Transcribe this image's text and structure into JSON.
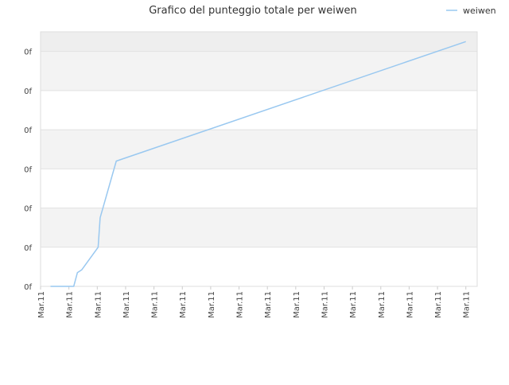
{
  "chart_data": {
    "type": "line",
    "title": "Grafico del punteggio totale per weiwen",
    "legend": {
      "position": "top-right",
      "label": "weiwen"
    },
    "y_tick_labels": [
      "0f",
      "0f",
      "0f",
      "0f",
      "0f",
      "0f",
      "0f"
    ],
    "x_tick_labels": [
      "Mar.11",
      "Mar.11",
      "Mar.11",
      "Mar.11",
      "Mar.11",
      "Mar.11",
      "Mar.11",
      "Mar.11",
      "Mar.11",
      "Mar.11",
      "Mar.11",
      "Mar.11",
      "Mar.11",
      "Mar.11",
      "Mar.11",
      "Mar.11"
    ],
    "ylim": [
      0,
      6.5
    ],
    "xlim": [
      0,
      15.4
    ],
    "grid": true,
    "series": [
      {
        "name": "weiwen",
        "color": "#99c8f0",
        "points": [
          {
            "x": 0.35,
            "y": 0.0
          },
          {
            "x": 1.17,
            "y": 0.0
          },
          {
            "x": 1.3,
            "y": 0.35
          },
          {
            "x": 1.45,
            "y": 0.42
          },
          {
            "x": 2.03,
            "y": 1.0
          },
          {
            "x": 2.1,
            "y": 1.75
          },
          {
            "x": 2.67,
            "y": 3.2
          },
          {
            "x": 15.0,
            "y": 6.25
          }
        ]
      }
    ]
  }
}
